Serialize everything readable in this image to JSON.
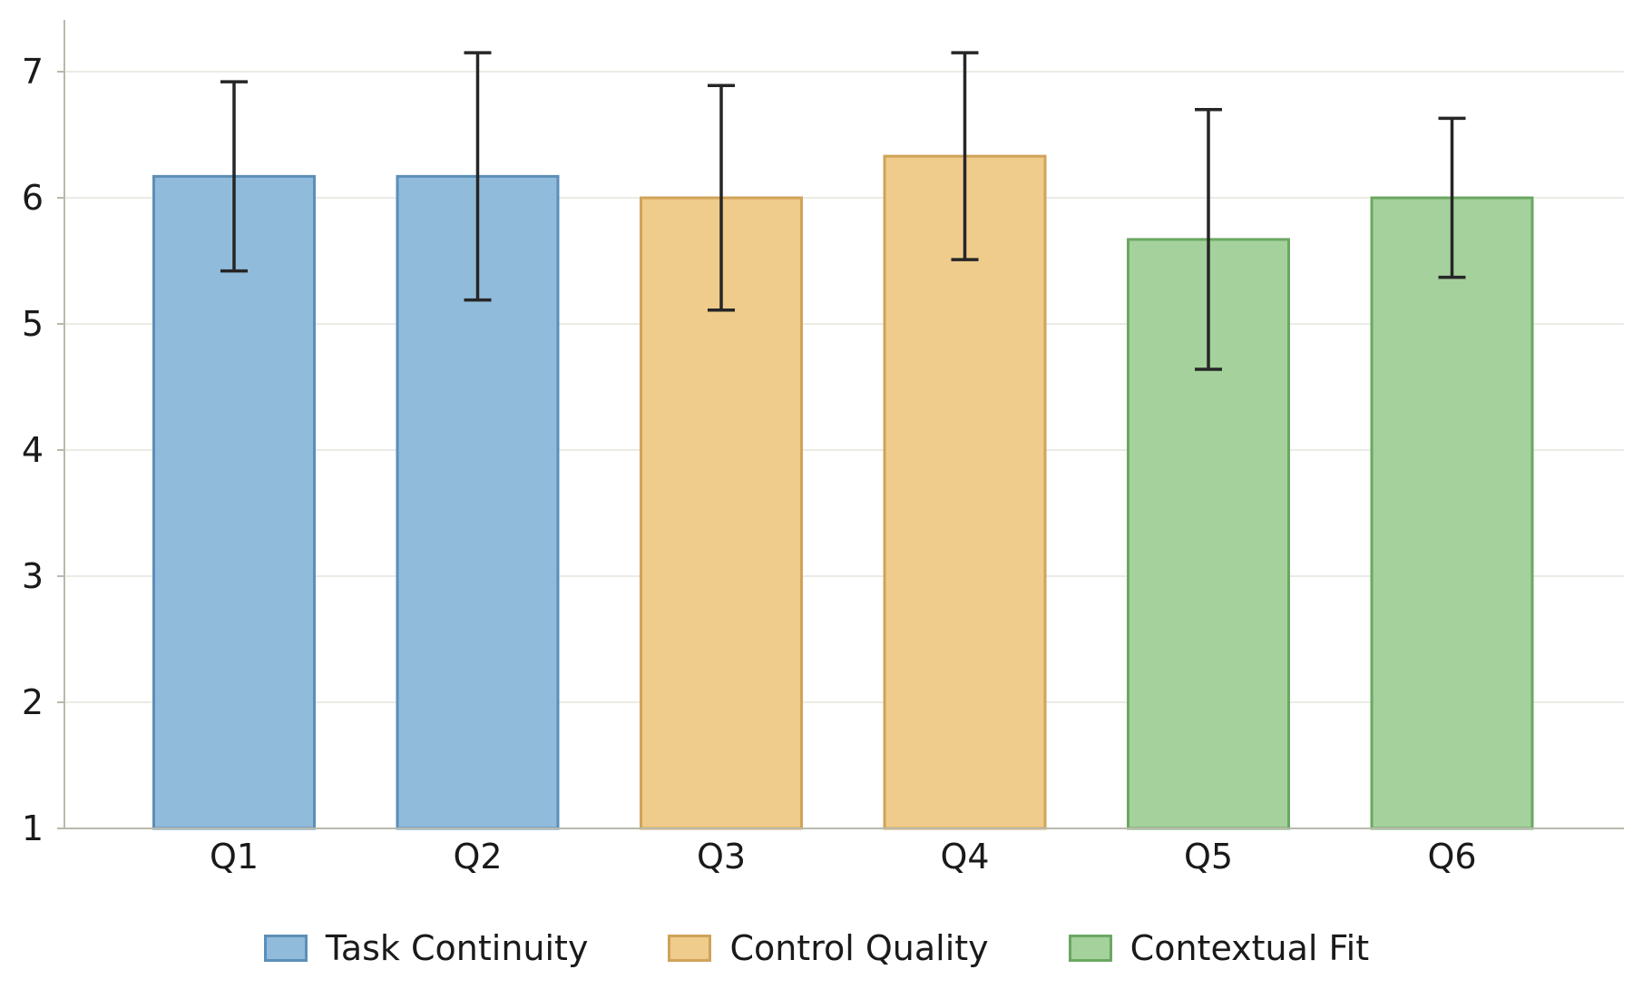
{
  "chart_data": {
    "type": "bar",
    "categories": [
      "Q1",
      "Q2",
      "Q3",
      "Q4",
      "Q5",
      "Q6"
    ],
    "values": [
      6.17,
      6.17,
      6.0,
      6.33,
      5.67,
      6.0
    ],
    "error": [
      0.75,
      0.98,
      0.89,
      0.82,
      1.03,
      0.63
    ],
    "groups": [
      0,
      0,
      1,
      1,
      2,
      2
    ],
    "legend": [
      {
        "label": "Task Continuity",
        "fill": "#91bbdb",
        "stroke": "#5b8fb8"
      },
      {
        "label": "Control Quality",
        "fill": "#efcb8c",
        "stroke": "#d0a359"
      },
      {
        "label": "Contextual Fit",
        "fill": "#a5d19c",
        "stroke": "#6aa861"
      }
    ],
    "yticks": [
      1,
      2,
      3,
      4,
      5,
      6,
      7
    ],
    "ylim": [
      1,
      7.4
    ],
    "grid": true,
    "legend_position": "bottom-center",
    "title": "",
    "xlabel": "",
    "ylabel": ""
  }
}
